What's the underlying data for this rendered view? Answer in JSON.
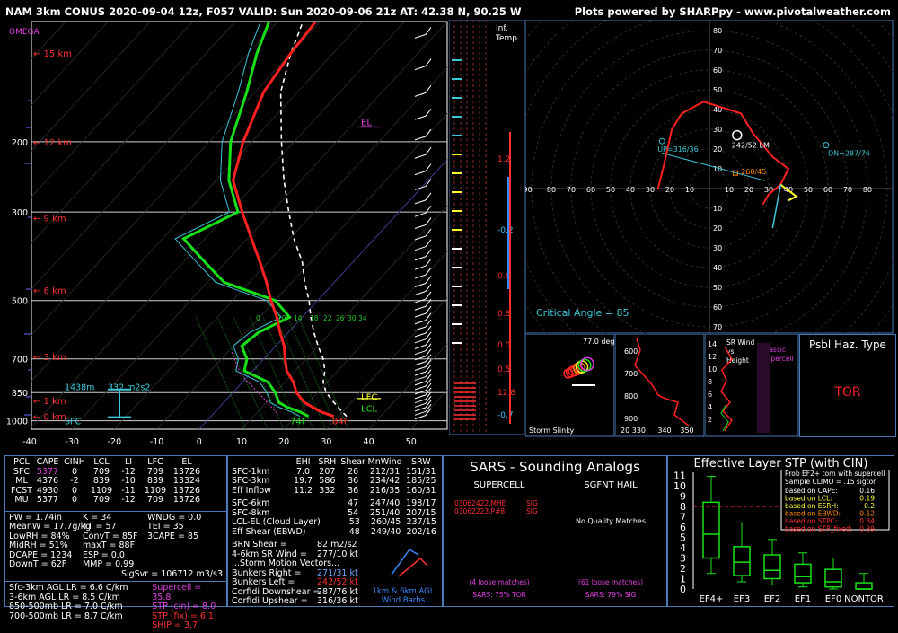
{
  "header": {
    "title": "NAM 3km CONUS 2020-09-04 12z, F057  VALID: Sun 2020-09-06 21z  AT: 42.38 N, 90.25 W",
    "credit": "Plots powered by SHARPpy - www.pivotalweather.com"
  },
  "skewt": {
    "omega_label": "OMEGA",
    "height_labels": [
      {
        "p": 120,
        "t": "15 km"
      },
      {
        "p": 200,
        "t": "12 km"
      },
      {
        "p": 310,
        "t": "9 km"
      },
      {
        "p": 470,
        "t": "6 km"
      },
      {
        "p": 690,
        "t": "3 km"
      },
      {
        "p": 890,
        "t": "1 km"
      },
      {
        "p": 975,
        "t": "0 km"
      }
    ],
    "pressure_labels": [
      "200",
      "300",
      "500",
      "700",
      "850",
      "1000"
    ],
    "pressure_values": [
      200,
      300,
      500,
      700,
      850,
      1000
    ],
    "temp_ticks": [
      "-40",
      "-30",
      "-20",
      "-10",
      "0",
      "10",
      "20",
      "30",
      "40",
      "50"
    ],
    "temp_values": [
      -40,
      -30,
      -20,
      -10,
      0,
      10,
      20,
      30,
      40,
      50
    ],
    "el_label": "EL",
    "lfc_label": "LFC",
    "lcl_label": "LCL",
    "sfc_label": "SFC",
    "sfc_temp": "84F",
    "sfc_dewp": "74F",
    "effective_layer_height": "1438m",
    "effective_srh": "332 m2s2",
    "mixing_ratio_labels": [
      "0",
      "10",
      "14",
      "18",
      "22",
      "26",
      "30",
      "34"
    ],
    "inf_temp_label": "Inf.\nTemp.",
    "inf_values": [
      "1.2",
      "-0.2",
      "0.6",
      "0.8",
      "0.0",
      "0.5",
      "12.8",
      "-0.7"
    ]
  },
  "chart_data": {
    "type": "line",
    "title": "",
    "xlabel": "",
    "ylabel": "",
    "ylim": [
      1000,
      100
    ],
    "xlim": [
      -40,
      50
    ],
    "series": [
      {
        "name": "",
        "p": [
          975,
          950,
          925,
          900,
          850,
          800,
          750,
          700,
          650,
          600,
          550,
          500,
          450,
          400,
          350,
          300,
          250,
          200,
          150,
          120,
          100
        ],
        "values": [
          29,
          25,
          22,
          19,
          15,
          12,
          8,
          5,
          2,
          -2,
          -6,
          -11,
          -16,
          -22,
          -29,
          -37,
          -46,
          -52,
          -58,
          -60,
          -61
        ]
      },
      {
        "name": "",
        "p": [
          975,
          950,
          925,
          900,
          850,
          800,
          750,
          700,
          650,
          600,
          550,
          500,
          450,
          400,
          350,
          300,
          250,
          200,
          150,
          120,
          100
        ],
        "values": [
          23,
          20,
          16,
          13,
          10,
          6,
          -2,
          -4,
          -8,
          -7,
          -3,
          -10,
          -26,
          -35,
          -45,
          -38,
          -47,
          -55,
          -62,
          -68,
          -72
        ]
      },
      {
        "name": "",
        "p": [
          975,
          950,
          925,
          900,
          850,
          800,
          750,
          700,
          650,
          600,
          550,
          500,
          450,
          400,
          350,
          300,
          250,
          200,
          150,
          120,
          100
        ],
        "values": [
          32,
          30,
          28,
          26,
          22,
          19,
          17,
          14,
          10,
          6,
          2,
          -2,
          -7,
          -12,
          -19,
          -26,
          -34,
          -43,
          -54,
          -60,
          -64
        ]
      }
    ]
  },
  "hodograph": {
    "ring_labels": [
      "10",
      "20",
      "30",
      "40",
      "50",
      "60",
      "70",
      "80"
    ],
    "neg_ring_labels": [
      "90",
      "80",
      "70",
      "60",
      "50",
      "40",
      "30",
      "20",
      "10"
    ],
    "critical_angle": "Critical Angle = 85",
    "lm_label": "242/52 LM",
    "rm_label": "260/45",
    "up_label": "UP=316/36",
    "dn_label": "DN=287/76"
  },
  "slinky": {
    "title": "Storm Slinky",
    "angle": "77.0 deg"
  },
  "theta": {
    "p_labels": [
      "600",
      "700",
      "800",
      "900"
    ],
    "x_labels": [
      "20 330",
      "340",
      "350"
    ]
  },
  "sr_wind": {
    "title": "SR Wind\nvs\nHeight",
    "classic": "Classic\nSupercell",
    "y_labels": [
      "14",
      "12",
      "10",
      "8",
      "6",
      "4",
      "2"
    ]
  },
  "haz": {
    "title": "Psbl Haz. Type",
    "type": "TOR"
  },
  "thermo": {
    "cols": [
      "PCL",
      "CAPE",
      "CINH",
      "LCL",
      "LI",
      "LFC",
      "EL"
    ],
    "rows": [
      {
        "name": "SFC",
        "cape": "5377",
        "cinh": "0",
        "lcl": "709",
        "li": "-12",
        "lfc": "709",
        "el": "13726"
      },
      {
        "name": "ML",
        "cape": "4376",
        "cinh": "-2",
        "lcl": "839",
        "li": "-10",
        "lfc": "839",
        "el": "13324"
      },
      {
        "name": "FCST",
        "cape": "4930",
        "cinh": "0",
        "lcl": "1109",
        "li": "-11",
        "lfc": "1109",
        "el": "13726"
      },
      {
        "name": "MU",
        "cape": "5377",
        "cinh": "0",
        "lcl": "709",
        "li": "-12",
        "lfc": "709",
        "el": "13726"
      }
    ],
    "misc_left": [
      "PW = 1.74in",
      "MeanW = 17.7g/kg",
      "LowRH = 84%",
      "MidRH = 51%",
      "DCAPE = 1234",
      "DownT = 62F"
    ],
    "misc_mid": [
      "K = 34",
      "TT = 57",
      "ConvT = 85F",
      "maxT = 88F",
      "ESP = 0.0",
      "MMP = 0.99"
    ],
    "misc_right": [
      "WNDG = 0.0",
      "TEI = 35",
      "3CAPE = 85",
      "",
      "",
      ""
    ],
    "sigsvr": "SigSvr = 106712 m3/s3",
    "lapse": [
      "Sfc-3km AGL LR = 6.6 C/km",
      "3-6km AGL LR = 8.5 C/km",
      "850-500mb LR = 7.0 C/km",
      "700-500mb LR = 8.7 C/km"
    ],
    "composite": [
      {
        "t": "Supercell = 35.8",
        "c": "#e040e0"
      },
      {
        "t": "STP (cin) = 8.0",
        "c": "#e040e0"
      },
      {
        "t": "STP (fix) = 6.1",
        "c": "#ff3030"
      },
      {
        "t": "SHIP = 3.7",
        "c": "#ff3030"
      }
    ]
  },
  "kinematic": {
    "cols": [
      "EHI",
      "SRH",
      "Shear",
      "MnWind",
      "SRW"
    ],
    "rows": [
      {
        "n": "SFC-1km",
        "v": [
          "7.0",
          "207",
          "26",
          "212/31",
          "151/31"
        ]
      },
      {
        "n": "SFC-3km",
        "v": [
          "19.7",
          "586",
          "36",
          "234/42",
          "185/25"
        ]
      },
      {
        "n": "Eff Inflow",
        "v": [
          "11.2",
          "332",
          "36",
          "216/35",
          "160/31"
        ]
      },
      {
        "n": "SFC-6km",
        "v": [
          "",
          "",
          "47",
          "247/40",
          "198/17"
        ]
      },
      {
        "n": "SFC-8km",
        "v": [
          "",
          "",
          "54",
          "251/40",
          "207/15"
        ]
      },
      {
        "n": "LCL-EL (Cloud Layer)",
        "v": [
          "",
          "",
          "53",
          "260/45",
          "237/15"
        ]
      },
      {
        "n": "Eff Shear (EBWD)",
        "v": [
          "",
          "",
          "48",
          "249/40",
          "202/16"
        ]
      }
    ],
    "brn": "BRN Shear =",
    "brn_v": "82 m2/s2",
    "srw46": "4-6km SR Wind =",
    "srw46_v": "277/10 kt",
    "motion_title": "...Storm Motion Vectors...",
    "motion": [
      {
        "n": "Bunkers Right =",
        "v": "271/31 kt",
        "c": "#6fa8ff"
      },
      {
        "n": "Bunkers Left =",
        "v": "242/52 kt",
        "c": "#ff3030"
      },
      {
        "n": "Corfidi Downshear =",
        "v": "287/76 kt",
        "c": "#ffffff"
      },
      {
        "n": "Corfidi Upshear =",
        "v": "316/36 kt",
        "c": "#ffffff"
      }
    ],
    "barbs_label": "1km & 6km AGL\nWind Barbs"
  },
  "sars": {
    "title": "SARS - Sounding Analogs",
    "super_h": "SUPERCELL",
    "hail_h": "SGFNT HAIL",
    "super_matches": [
      {
        "d": "03062422.MHE",
        "t": "SIG"
      },
      {
        "d": "03062223.P#8",
        "t": "SIG"
      }
    ],
    "hail_text": "No Quality Matches",
    "super_loose": "(4 loose matches)",
    "hail_loose": "(61 loose matches)",
    "super_pct": "SARS: 75% TOR",
    "hail_pct": "SARS: 79% SIG"
  },
  "stp": {
    "title": "Effective Layer STP (with CIN)",
    "y_labels": [
      "0",
      "1",
      "2",
      "3",
      "4",
      "5",
      "6",
      "7",
      "8",
      "9",
      "10",
      "11"
    ],
    "x_labels": [
      "EF4+",
      "EF3",
      "EF2",
      "EF1",
      "EF0",
      "NONTOR"
    ],
    "stp_value": 8.0,
    "boxes": [
      {
        "lo": 1.5,
        "q1": 3,
        "med": 5.3,
        "q3": 8.4,
        "hi": 10.9
      },
      {
        "lo": 0.7,
        "q1": 1.3,
        "med": 2.6,
        "q3": 4.1,
        "hi": 6.4
      },
      {
        "lo": 0.4,
        "q1": 1.0,
        "med": 1.8,
        "q3": 3.3,
        "hi": 4.8
      },
      {
        "lo": 0.2,
        "q1": 0.6,
        "med": 1.2,
        "q3": 2.4,
        "hi": 3.5
      },
      {
        "lo": 0.0,
        "q1": 0.2,
        "med": 0.7,
        "q3": 1.9,
        "hi": 3.0
      },
      {
        "lo": 0.0,
        "q1": 0.0,
        "med": 0.0,
        "q3": 0.6,
        "hi": 1.5
      }
    ],
    "prob_title": "Prob EF2+ torn with supercell",
    "prob_sub": "Sample CLIMO = .15 sigtor",
    "prob": [
      {
        "t": "based on CAPE:",
        "v": "0.16",
        "c": "#ffffff"
      },
      {
        "t": "based on LCL:",
        "v": "0.19",
        "c": "#ffff40"
      },
      {
        "t": "based on ESRH:",
        "v": "0.2",
        "c": "#ffff40"
      },
      {
        "t": "based on EBWD:",
        "v": "0.12",
        "c": "#ff8c00"
      },
      {
        "t": "based on STPC:",
        "v": "0.34",
        "c": "#ff3030"
      },
      {
        "t": "based on STP_fixed:",
        "v": "0.39",
        "c": "#ff3030"
      }
    ]
  }
}
